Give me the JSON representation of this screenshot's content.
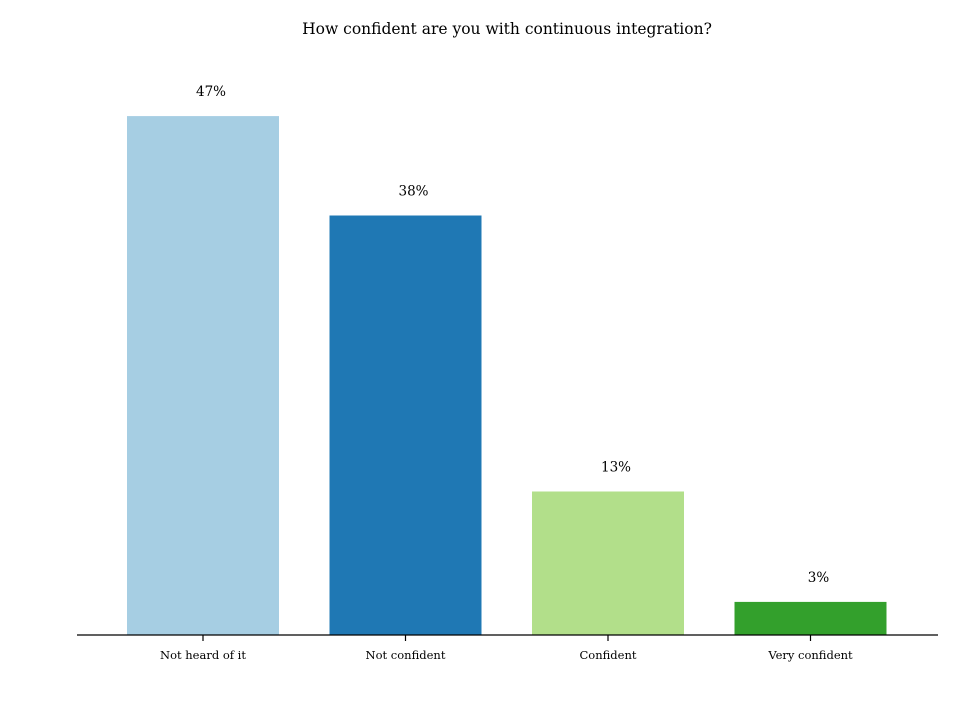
{
  "chart_data": {
    "type": "bar",
    "title": "How confident are you with continuous integration?",
    "categories": [
      "Not heard of it",
      "Not confident",
      "Confident",
      "Very confident"
    ],
    "values": [
      47,
      38,
      13,
      3
    ],
    "value_labels": [
      "47%",
      "38%",
      "13%",
      "3%"
    ],
    "unit": "%",
    "colors": [
      "#a6cee3",
      "#1f78b4",
      "#b2df8a",
      "#33a02c"
    ],
    "xlabel": "",
    "ylabel": "",
    "ylim": [
      0,
      52
    ],
    "grid": false,
    "legend": "none"
  }
}
